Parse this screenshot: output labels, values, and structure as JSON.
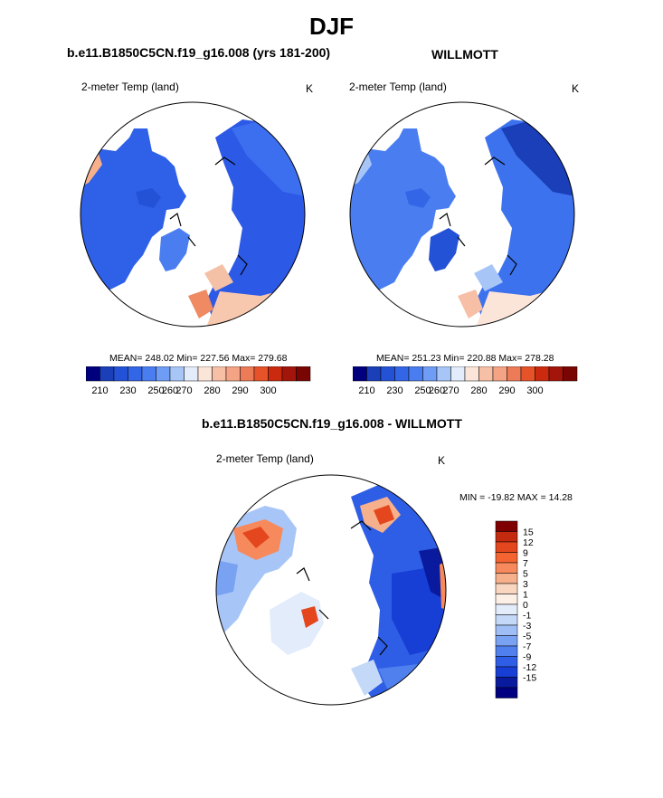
{
  "title": "DJF",
  "panels": [
    {
      "title": "b.e11.B1850C5CN.f19_g16.008 (yrs 181-200)",
      "variable": "2-meter Temp (land)",
      "units": "K",
      "stats": "MEAN= 248.02  Min= 227.56  Max= 279.68",
      "mean": 248.02,
      "min": 227.56,
      "max": 279.68
    },
    {
      "title": "WILLMOTT",
      "variable": "2-meter Temp (land)",
      "units": "K",
      "stats": "MEAN= 251.23  Min= 220.88  Max= 278.28",
      "mean": 251.23,
      "min": 220.88,
      "max": 278.28
    },
    {
      "title": "b.e11.B1850C5CN.f19_g16.008 - WILLMOTT",
      "variable": "2-meter Temp (land)",
      "units": "K",
      "stats": "MIN = -19.82 MAX =  14.28",
      "min": -19.82,
      "max": 14.28
    }
  ],
  "abs_colorbar": {
    "colors": [
      "#00007f",
      "#1a3fb8",
      "#2452d6",
      "#3366e6",
      "#4a7ef0",
      "#6f9cf4",
      "#a7c6f7",
      "#e3ecfb",
      "#fbe5d9",
      "#f7bfa6",
      "#f4a384",
      "#ee7b58",
      "#e65329",
      "#cc2a0e",
      "#a3150a",
      "#7a0603"
    ],
    "labels": [
      "210",
      "230",
      "250",
      "260",
      "270",
      "280",
      "290",
      "300"
    ]
  },
  "diff_colorbar": {
    "colors": [
      "#7f0000",
      "#c42a0e",
      "#e4461d",
      "#f46431",
      "#f78a5c",
      "#f7b08c",
      "#f9d6c0",
      "#fcefe6",
      "#e3ecfb",
      "#c4d8f8",
      "#9ebef5",
      "#7aa2f2",
      "#4f80ee",
      "#2f5ee6",
      "#173fd6",
      "#0a1a9e",
      "#000080"
    ],
    "labels": [
      "15",
      "12",
      "9",
      "7",
      "5",
      "3",
      "1",
      "0",
      "-1",
      "-3",
      "-5",
      "-7",
      "-9",
      "-12",
      "-15"
    ]
  }
}
